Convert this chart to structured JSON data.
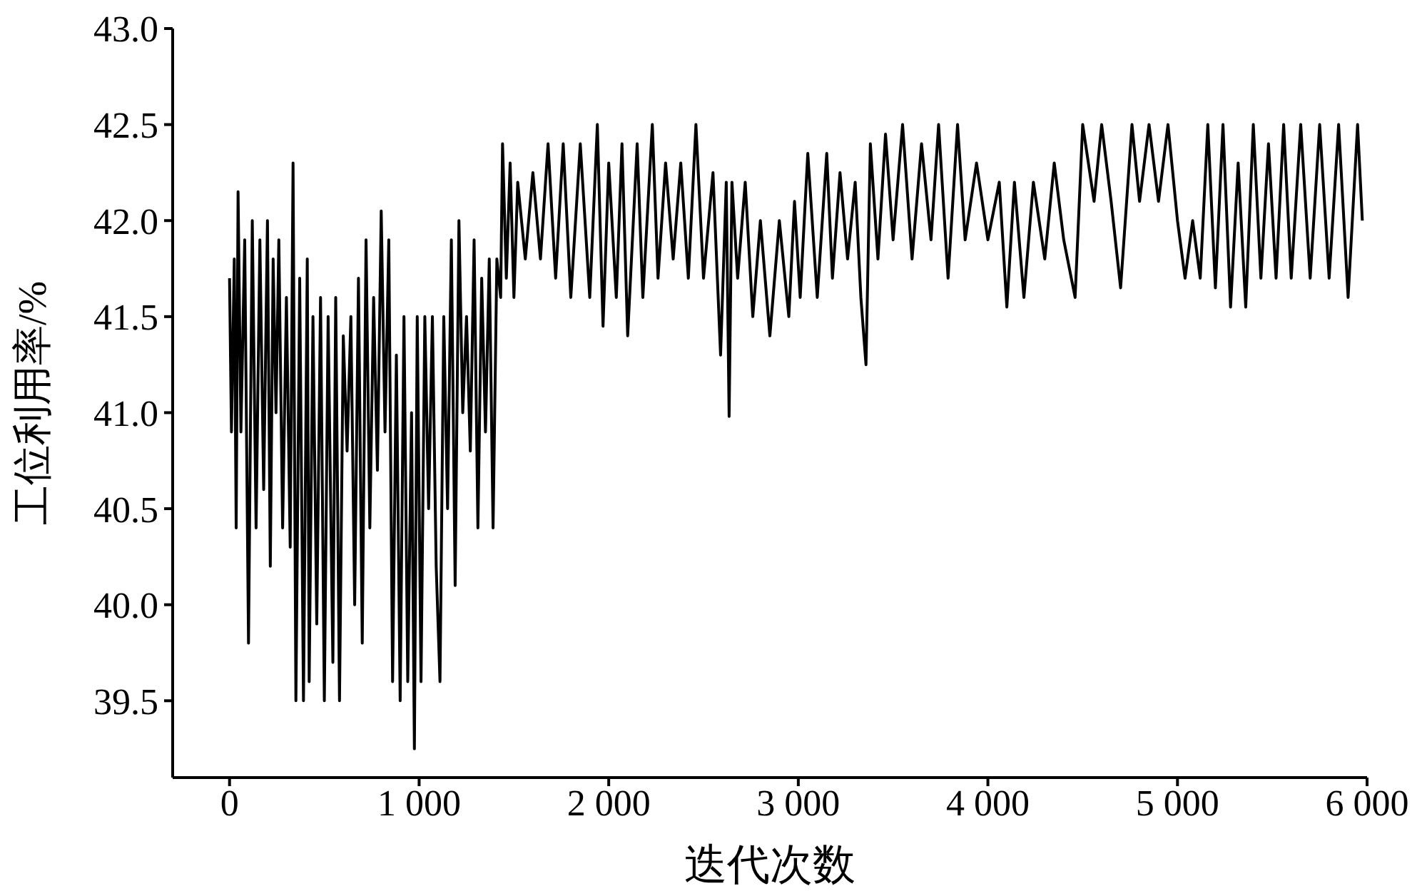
{
  "chart_data": {
    "type": "line",
    "xlabel": "迭代次数",
    "ylabel": "工位利用率/%",
    "xlim": [
      -300,
      6000
    ],
    "xticks": [
      0,
      {
        "value": 1000,
        "label": "1 000"
      },
      {
        "value": 2000,
        "label": "2 000"
      },
      {
        "value": 3000,
        "label": "3 000"
      },
      {
        "value": 4000,
        "label": "4 000"
      },
      {
        "value": 5000,
        "label": "5 000"
      },
      {
        "value": 6000,
        "label": "6 000"
      }
    ],
    "ylim": [
      39.1,
      43
    ],
    "yticks": [
      39.5,
      {
        "value": 40,
        "label": "40.0"
      },
      40.5,
      {
        "value": 41,
        "label": "41.0"
      },
      41.5,
      {
        "value": 42,
        "label": "42.0"
      },
      42.5,
      {
        "value": 43,
        "label": "43.0"
      }
    ],
    "grid": false,
    "legend": false,
    "marker": "none",
    "line_style": "solid",
    "series": [
      {
        "color": "#000000",
        "x": [
          0,
          10,
          25,
          35,
          45,
          60,
          80,
          100,
          120,
          140,
          160,
          180,
          200,
          215,
          230,
          245,
          260,
          280,
          300,
          320,
          335,
          350,
          370,
          390,
          410,
          420,
          440,
          460,
          480,
          500,
          520,
          545,
          560,
          580,
          600,
          620,
          640,
          660,
          680,
          700,
          720,
          740,
          760,
          780,
          800,
          820,
          840,
          860,
          880,
          900,
          920,
          940,
          960,
          975,
          990,
          1010,
          1030,
          1050,
          1070,
          1090,
          1110,
          1130,
          1150,
          1170,
          1190,
          1210,
          1230,
          1250,
          1270,
          1290,
          1310,
          1330,
          1350,
          1370,
          1390,
          1410,
          1430,
          1440,
          1460,
          1480,
          1500,
          1520,
          1560,
          1600,
          1640,
          1680,
          1720,
          1760,
          1800,
          1850,
          1900,
          1940,
          1970,
          2000,
          2040,
          2070,
          2100,
          2150,
          2180,
          2230,
          2260,
          2300,
          2340,
          2380,
          2420,
          2460,
          2500,
          2550,
          2590,
          2620,
          2635,
          2650,
          2680,
          2720,
          2760,
          2800,
          2850,
          2900,
          2950,
          2980,
          3010,
          3050,
          3100,
          3150,
          3180,
          3220,
          3260,
          3300,
          3330,
          3357,
          3380,
          3420,
          3460,
          3500,
          3550,
          3600,
          3650,
          3700,
          3740,
          3790,
          3840,
          3880,
          3940,
          4000,
          4060,
          4100,
          4140,
          4190,
          4240,
          4300,
          4350,
          4400,
          4460,
          4500,
          4560,
          4600,
          4650,
          4700,
          4760,
          4800,
          4850,
          4900,
          4950,
          5000,
          5040,
          5080,
          5120,
          5160,
          5200,
          5240,
          5280,
          5320,
          5360,
          5400,
          5440,
          5480,
          5520,
          5560,
          5600,
          5650,
          5700,
          5750,
          5800,
          5850,
          5900,
          5950,
          5975
        ],
        "values": [
          41.7,
          40.9,
          41.8,
          40.4,
          42.15,
          40.9,
          41.9,
          39.8,
          42.0,
          40.4,
          41.9,
          40.6,
          42.0,
          40.2,
          41.8,
          41.0,
          41.9,
          40.4,
          41.6,
          40.3,
          42.3,
          39.5,
          41.7,
          39.5,
          41.8,
          39.6,
          41.5,
          39.9,
          41.6,
          39.5,
          41.5,
          39.7,
          41.6,
          39.5,
          41.4,
          40.8,
          41.5,
          40.0,
          41.7,
          39.8,
          41.9,
          40.4,
          41.6,
          40.7,
          42.05,
          40.9,
          41.9,
          39.6,
          41.3,
          39.5,
          41.5,
          39.6,
          41.0,
          39.25,
          41.5,
          39.6,
          41.5,
          40.5,
          41.5,
          40.2,
          39.6,
          41.5,
          40.5,
          41.9,
          40.1,
          42.0,
          41.0,
          41.5,
          40.8,
          41.9,
          40.4,
          41.7,
          40.9,
          41.8,
          40.4,
          41.8,
          41.6,
          42.4,
          41.7,
          42.3,
          41.6,
          42.2,
          41.8,
          42.25,
          41.8,
          42.4,
          41.7,
          42.4,
          41.6,
          42.4,
          41.6,
          42.5,
          41.45,
          42.3,
          41.6,
          42.4,
          41.4,
          42.4,
          41.6,
          42.5,
          41.7,
          42.3,
          41.8,
          42.3,
          41.7,
          42.5,
          41.7,
          42.25,
          41.3,
          42.2,
          40.98,
          42.2,
          41.7,
          42.2,
          41.5,
          42.0,
          41.4,
          42.0,
          41.5,
          42.1,
          41.6,
          42.35,
          41.6,
          42.35,
          41.7,
          42.25,
          41.8,
          42.2,
          41.6,
          41.25,
          42.4,
          41.8,
          42.45,
          41.9,
          42.5,
          41.8,
          42.4,
          41.9,
          42.5,
          41.7,
          42.5,
          41.9,
          42.3,
          41.9,
          42.2,
          41.55,
          42.2,
          41.6,
          42.2,
          41.8,
          42.3,
          41.9,
          41.6,
          42.5,
          42.1,
          42.5,
          42.1,
          41.65,
          42.5,
          42.1,
          42.5,
          42.1,
          42.5,
          42.0,
          41.7,
          42.0,
          41.7,
          42.5,
          41.65,
          42.5,
          41.55,
          42.3,
          41.55,
          42.5,
          41.7,
          42.4,
          41.7,
          42.5,
          41.7,
          42.5,
          41.7,
          42.5,
          41.7,
          42.5,
          41.6,
          42.5,
          42.0
        ]
      }
    ]
  }
}
